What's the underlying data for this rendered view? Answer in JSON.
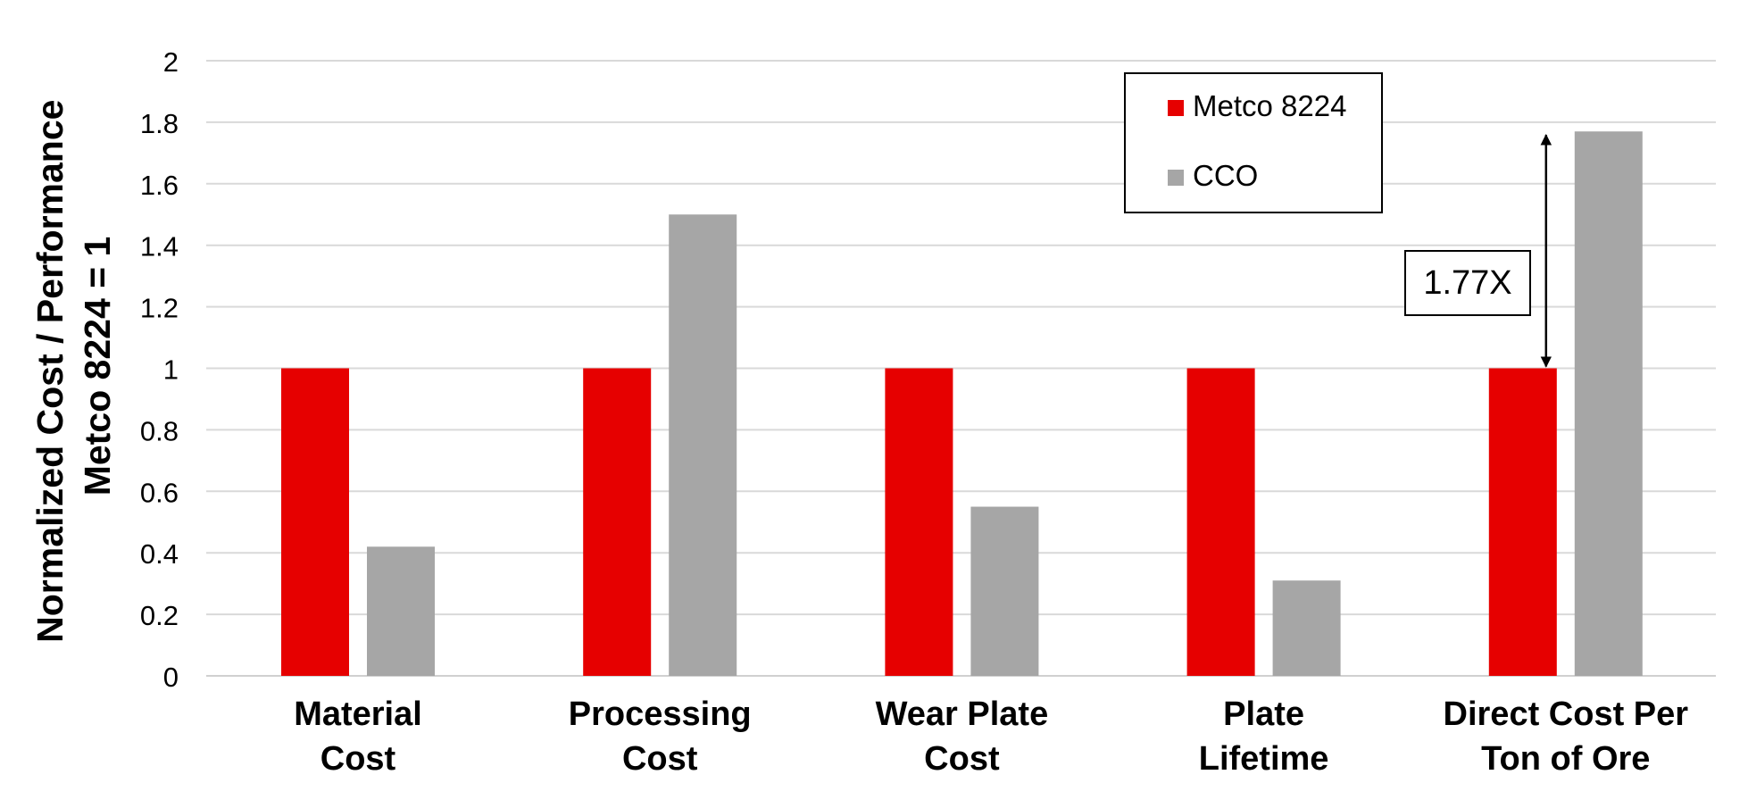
{
  "chart_data": {
    "type": "bar",
    "title": "",
    "ylabel_line1": "Normalized Cost / Performance",
    "ylabel_line2": "Metco 8224 = 1",
    "xlabel": "",
    "ylim": [
      0,
      2
    ],
    "yticks": [
      "0",
      "0.2",
      "0.4",
      "0.6",
      "0.8",
      "1",
      "1.2",
      "1.4",
      "1.6",
      "1.8",
      "2"
    ],
    "grid": true,
    "legend_position": "top-right",
    "categories": [
      [
        "Material",
        "Cost"
      ],
      [
        "Processing",
        "Cost"
      ],
      [
        "Wear Plate",
        "Cost"
      ],
      [
        "Plate",
        "Lifetime"
      ],
      [
        "Direct Cost Per",
        "Ton of Ore"
      ]
    ],
    "series": [
      {
        "name": "Metco 8224",
        "color": "#e60000",
        "values": [
          1,
          1,
          1,
          1,
          1
        ]
      },
      {
        "name": "CCO",
        "color": "#a6a6a6",
        "values": [
          0.42,
          1.5,
          0.55,
          0.31,
          1.77
        ]
      }
    ],
    "annotation": {
      "label": "1.77X",
      "category_index": 4,
      "from": 1,
      "to": 1.77
    }
  }
}
